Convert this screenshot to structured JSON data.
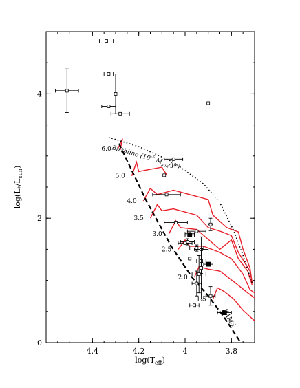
{
  "chart_data": {
    "type": "scatter",
    "xlabel": "log(T",
    "xlabel_sub": "eff",
    "xlabel_end": ")",
    "ylabel": "log(L",
    "ylabel_sub1": "*",
    "ylabel_mid": "/L",
    "ylabel_sub2": "sun",
    "ylabel_end": ")",
    "xlim": [
      4.6,
      3.7
    ],
    "ylim": [
      0,
      5
    ],
    "x_reversed": true,
    "x_ticks": [
      4.4,
      4.2,
      4.0,
      3.8
    ],
    "x_tick_labels": [
      "4.4",
      "4.2",
      "4",
      "3.8"
    ],
    "y_ticks": [
      0,
      2,
      4
    ],
    "y_tick_labels": [
      "0",
      "2",
      "4"
    ],
    "zams": {
      "label": "ZAMS",
      "x": [
        4.285,
        4.26,
        4.17,
        4.06,
        3.97,
        3.9,
        3.83,
        3.76
      ],
      "y": [
        3.2,
        3.0,
        2.3,
        1.55,
        1.05,
        0.75,
        0.4,
        0.0
      ]
    },
    "birthline": {
      "label": "Birthline (10",
      "label_sup": "-5",
      "label_mid": " M",
      "label_sub": "sun",
      "label_end": "/yr)",
      "x": [
        4.33,
        4.2,
        4.05,
        3.92,
        3.85,
        3.79,
        3.75,
        3.71
      ],
      "y": [
        3.3,
        3.15,
        2.9,
        2.55,
        2.25,
        1.8,
        1.4,
        0.95
      ]
    },
    "tracks": [
      {
        "label": "6.0",
        "x": [
          4.29,
          4.27,
          4.28
        ],
        "y": [
          3.12,
          3.28,
          3.1
        ]
      },
      {
        "label": "5.0",
        "x": [
          4.23,
          4.21,
          4.2,
          4.16,
          4.1,
          4.08
        ],
        "y": [
          2.68,
          2.9,
          2.75,
          2.78,
          2.82,
          2.7
        ]
      },
      {
        "label": "4.0",
        "x": [
          4.18,
          4.15,
          4.12,
          4.05,
          3.9,
          3.88,
          3.82,
          3.77,
          3.75,
          3.72,
          3.71
        ],
        "y": [
          2.28,
          2.48,
          2.38,
          2.45,
          2.3,
          2.05,
          1.85,
          1.78,
          1.5,
          1.2,
          0.95
        ]
      },
      {
        "label": "3.5",
        "x": [
          4.15,
          4.12,
          4.1,
          4.05,
          3.95,
          3.9,
          3.84,
          3.8,
          3.77,
          3.72,
          3.71
        ],
        "y": [
          2.0,
          2.22,
          2.12,
          2.15,
          2.05,
          1.85,
          1.78,
          1.72,
          1.45,
          1.15,
          0.95
        ]
      },
      {
        "label": "3.0",
        "x": [
          4.07,
          4.04,
          4.02,
          3.95,
          3.85,
          3.8,
          3.77,
          3.73,
          3.71
        ],
        "y": [
          1.75,
          1.96,
          1.85,
          1.82,
          1.5,
          1.65,
          1.35,
          1.15,
          0.92
        ]
      },
      {
        "label": "2.5",
        "x": [
          4.03,
          4.0,
          3.98,
          3.92,
          3.85,
          3.8,
          3.75,
          3.72,
          3.7
        ],
        "y": [
          1.5,
          1.65,
          1.55,
          1.55,
          1.45,
          1.35,
          1.1,
          0.85,
          0.8
        ]
      },
      {
        "label": "2.0",
        "x": [
          3.96,
          3.94,
          3.9,
          3.85,
          3.78,
          3.73,
          3.7
        ],
        "y": [
          1.05,
          1.22,
          1.18,
          1.15,
          0.95,
          0.8,
          0.72
        ]
      },
      {
        "label": "1.5",
        "x": [
          3.88,
          3.86,
          3.83,
          3.79,
          3.75,
          3.7
        ],
        "y": [
          0.7,
          0.88,
          0.82,
          0.7,
          0.52,
          0.35
        ]
      }
    ],
    "points_open": [
      {
        "x": 4.34,
        "y": 4.85,
        "xerr": 0.03,
        "yerr": 0
      },
      {
        "x": 4.51,
        "y": 4.05,
        "xerr": 0.05,
        "yerr": 0.35
      },
      {
        "x": 4.33,
        "y": 4.32,
        "xerr": 0.02,
        "yerr": 0
      },
      {
        "x": 4.3,
        "y": 4.0,
        "xerr": 0,
        "yerr": 0.32
      },
      {
        "x": 4.33,
        "y": 3.8,
        "xerr": 0.03,
        "yerr": 0
      },
      {
        "x": 4.28,
        "y": 3.68,
        "xerr": 0.04,
        "yerr": 0
      },
      {
        "x": 3.9,
        "y": 3.85,
        "xerr": 0,
        "yerr": 0
      },
      {
        "x": 4.05,
        "y": 2.95,
        "xerr": 0.04,
        "yerr": 0
      },
      {
        "x": 4.09,
        "y": 2.69,
        "xerr": 0,
        "yerr": 0
      },
      {
        "x": 4.08,
        "y": 2.38,
        "xerr": 0.06,
        "yerr": 0
      },
      {
        "x": 4.04,
        "y": 1.93,
        "xerr": 0.05,
        "yerr": 0
      },
      {
        "x": 3.89,
        "y": 1.9,
        "xerr": 0.01,
        "yerr": 0.1
      },
      {
        "x": 3.95,
        "y": 1.79,
        "xerr": 0.04,
        "yerr": 0
      },
      {
        "x": 3.98,
        "y": 1.75,
        "xerr": 0.02,
        "yerr": 0
      },
      {
        "x": 3.99,
        "y": 1.62,
        "xerr": 0.03,
        "yerr": 0.05
      },
      {
        "x": 4.0,
        "y": 1.6,
        "xerr": 0.03,
        "yerr": 0
      },
      {
        "x": 3.95,
        "y": 1.52,
        "xerr": 0.03,
        "yerr": 0.05
      },
      {
        "x": 3.93,
        "y": 1.5,
        "xerr": 0.03,
        "yerr": 0
      },
      {
        "x": 3.98,
        "y": 1.35,
        "xerr": 0,
        "yerr": 0
      },
      {
        "x": 3.93,
        "y": 1.31,
        "xerr": 0.02,
        "yerr": 0.2
      },
      {
        "x": 3.94,
        "y": 1.1,
        "xerr": 0.03,
        "yerr": 0.3
      },
      {
        "x": 3.95,
        "y": 0.95,
        "xerr": 0.02,
        "yerr": 0.2
      },
      {
        "x": 3.93,
        "y": 1.2,
        "xerr": 0,
        "yerr": 0.5
      },
      {
        "x": 3.89,
        "y": 0.75,
        "xerr": 0.02,
        "yerr": 0.15
      },
      {
        "x": 3.96,
        "y": 0.6,
        "xerr": 0.02,
        "yerr": 0
      }
    ],
    "points_filled": [
      {
        "x": 3.98,
        "y": 1.73,
        "xerr": 0.02,
        "yerr": 0
      },
      {
        "x": 3.9,
        "y": 1.26,
        "xerr": 0.02,
        "yerr": 0
      },
      {
        "x": 3.83,
        "y": 0.48,
        "xerr": 0.03,
        "yerr": 0
      }
    ]
  }
}
